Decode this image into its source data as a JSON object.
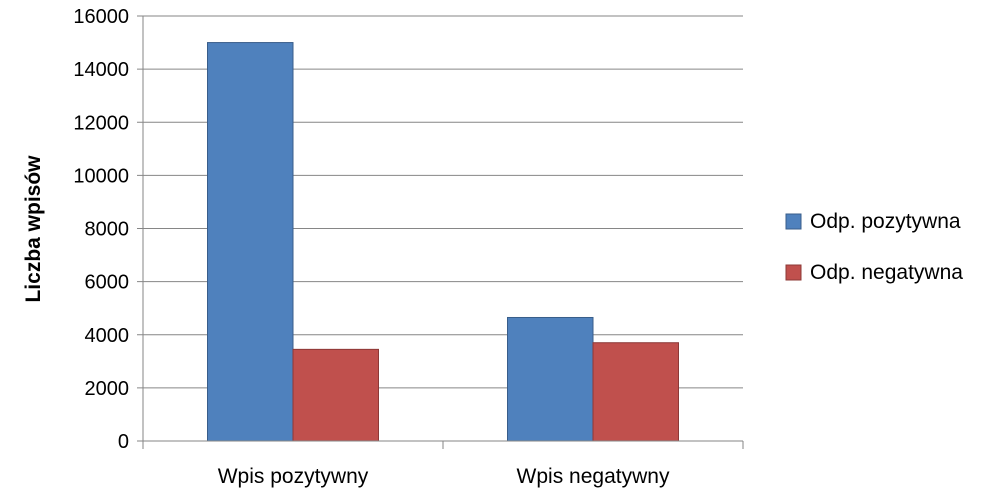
{
  "chart_data": {
    "type": "bar",
    "title": "",
    "xlabel": "",
    "ylabel": "Liczba wpisów",
    "ylim": [
      0,
      16000
    ],
    "yticks": [
      0,
      2000,
      4000,
      6000,
      8000,
      10000,
      12000,
      14000,
      16000
    ],
    "categories": [
      "Wpis pozytywny",
      "Wpis negatywny"
    ],
    "series": [
      {
        "name": "Odp. pozytywna",
        "values": [
          15000,
          4650
        ],
        "color": "#4F81BD",
        "border": "#385D8A"
      },
      {
        "name": "Odp. negatywna",
        "values": [
          3450,
          3700
        ],
        "color": "#C0504D",
        "border": "#8C3836"
      }
    ],
    "grid": true,
    "legend": "right"
  }
}
